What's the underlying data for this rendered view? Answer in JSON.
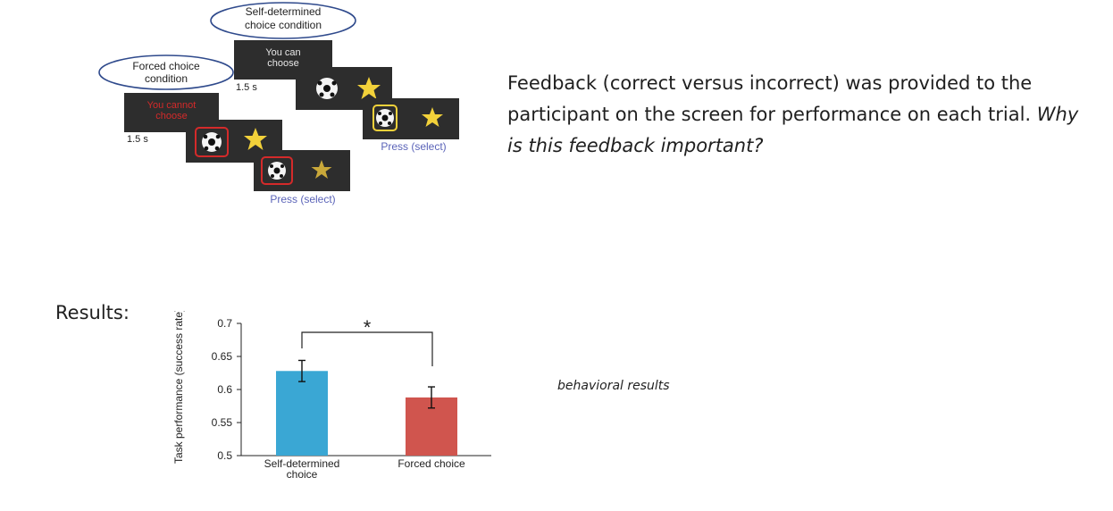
{
  "task_diagram": {
    "self_determined_label": [
      "Self-determined",
      "choice condition"
    ],
    "forced_label": [
      "Forced choice",
      "condition"
    ],
    "you_can_choose": [
      "You can",
      "choose"
    ],
    "you_cannot_choose": [
      "You cannot",
      "choose"
    ],
    "duration_1": "1.5 s",
    "duration_2": "1.5 s",
    "press_select_1": "Press (select)",
    "press_select_2": "Press (select)",
    "colors": {
      "screen": "#2d2d2d",
      "red_text": "#d42a2a",
      "press_text": "#5a63b8",
      "ellipse": "#2f4a8c",
      "star": "#f2d13a"
    },
    "icons": [
      "soccer-ball-icon",
      "star-icon"
    ]
  },
  "feedback_text": {
    "normal": "Feedback (correct versus incorrect) was provided to the participant on the screen for performance on each trial. ",
    "italic": "Why is this feedback important?"
  },
  "results_label": "Results:",
  "caption": "behavioral results",
  "chart_data": {
    "type": "bar",
    "categories": [
      [
        "Self-determined",
        "choice"
      ],
      [
        "Forced choice"
      ]
    ],
    "values": [
      0.628,
      0.588
    ],
    "errors": [
      0.016,
      0.016
    ],
    "bar_colors": [
      "#3aa7d4",
      "#d0554e"
    ],
    "ylabel": "Task performance (success rate)",
    "ylim": [
      0.5,
      0.7
    ],
    "yticks": [
      0.5,
      0.55,
      0.6,
      0.65,
      0.7
    ],
    "ytick_labels": [
      "0.5",
      "0.55",
      "0.6",
      "0.65",
      "0.7"
    ],
    "significance": "*",
    "grid": false
  }
}
